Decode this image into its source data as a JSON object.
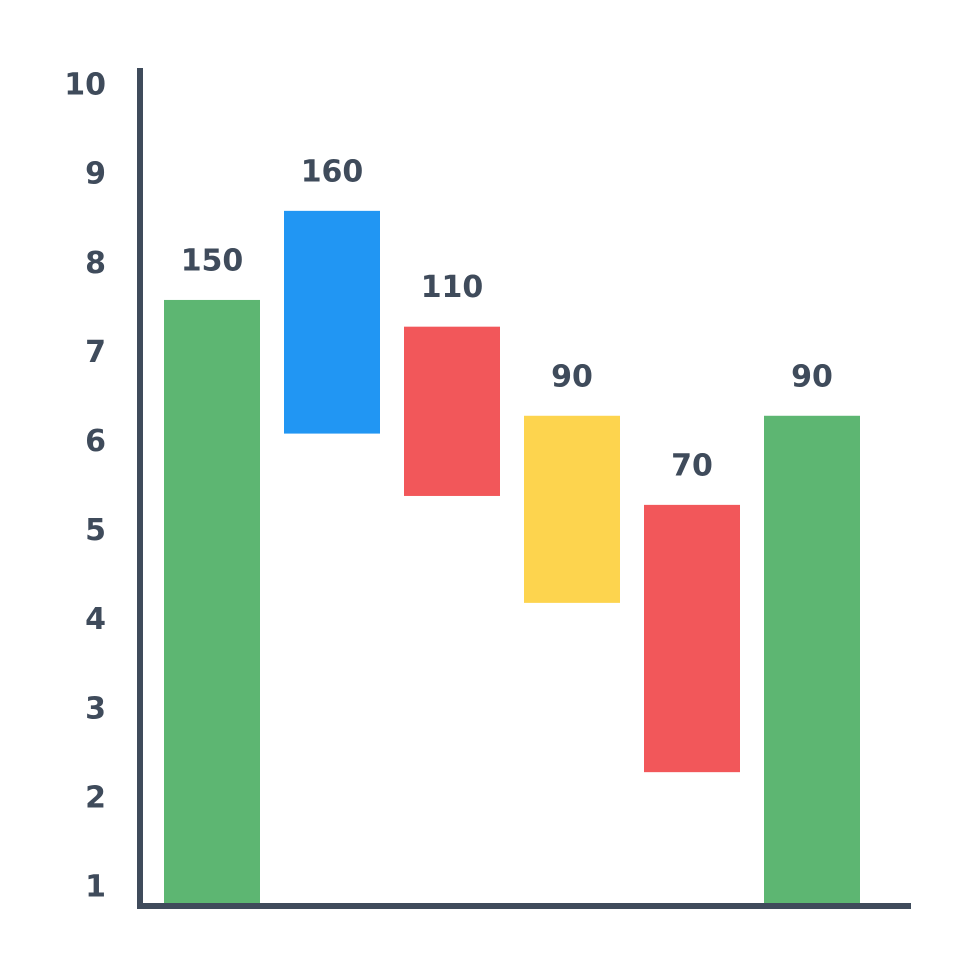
{
  "chart_data": {
    "type": "floating-bar",
    "values": [
      7.6,
      8.6,
      7.3,
      6.3,
      5.3,
      6.3
    ],
    "bottoms": [
      null,
      6.1,
      5.4,
      4.2,
      2.3,
      null
    ],
    "colors": [
      "#5db672",
      "#2196f3",
      "#f2575a",
      "#fdd44e",
      "#f2575a",
      "#5db672"
    ],
    "annotations": [
      "150",
      "160",
      "110",
      "90",
      "70",
      "90"
    ],
    "ylim": [
      0.8,
      10.2
    ],
    "yticks": [
      1,
      2,
      3,
      4,
      5,
      6,
      7,
      8,
      9,
      10
    ]
  }
}
